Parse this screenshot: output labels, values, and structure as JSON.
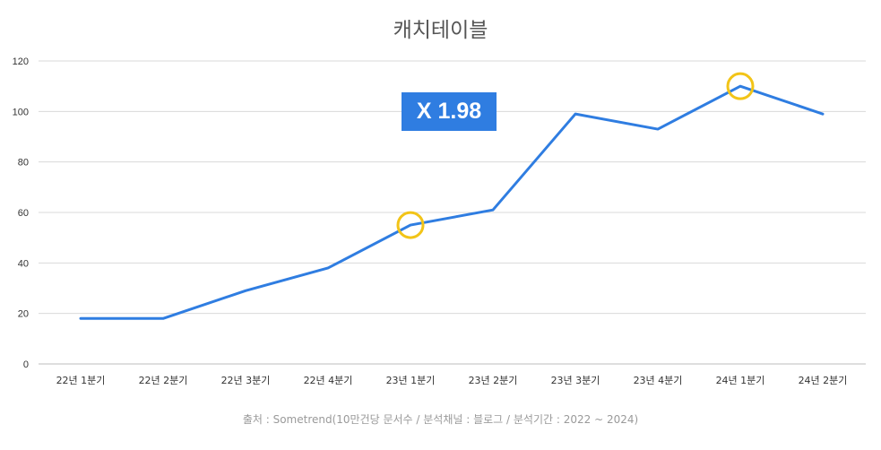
{
  "chart_data": {
    "type": "line",
    "title": "캐치테이블",
    "categories": [
      "22년 1분기",
      "22년 2분기",
      "22년 3분기",
      "22년 4분기",
      "23년 1분기",
      "23년 2분기",
      "23년 3분기",
      "23년 4분기",
      "24년 1분기",
      "24년 2분기"
    ],
    "series": [
      {
        "values": [
          18,
          18,
          29,
          38,
          55,
          61,
          99,
          93,
          110,
          99
        ]
      }
    ],
    "ylim": [
      0,
      120
    ],
    "yticks": [
      0,
      20,
      40,
      60,
      80,
      100,
      120
    ],
    "grid": true,
    "legend": "none",
    "highlighted_points": [
      "23년 1분기",
      "24년 1분기"
    ],
    "annotation": "X 1.98",
    "source": "출처 : Sometrend(10만건당 문서수 / 분석채널 : 블로그 / 분석기간 : 2022 ~ 2024)"
  },
  "colors": {
    "line": "#2f7de1",
    "highlight_ring": "#f2c418",
    "badge": "#2f7de1",
    "grid": "#d9d9d9"
  }
}
